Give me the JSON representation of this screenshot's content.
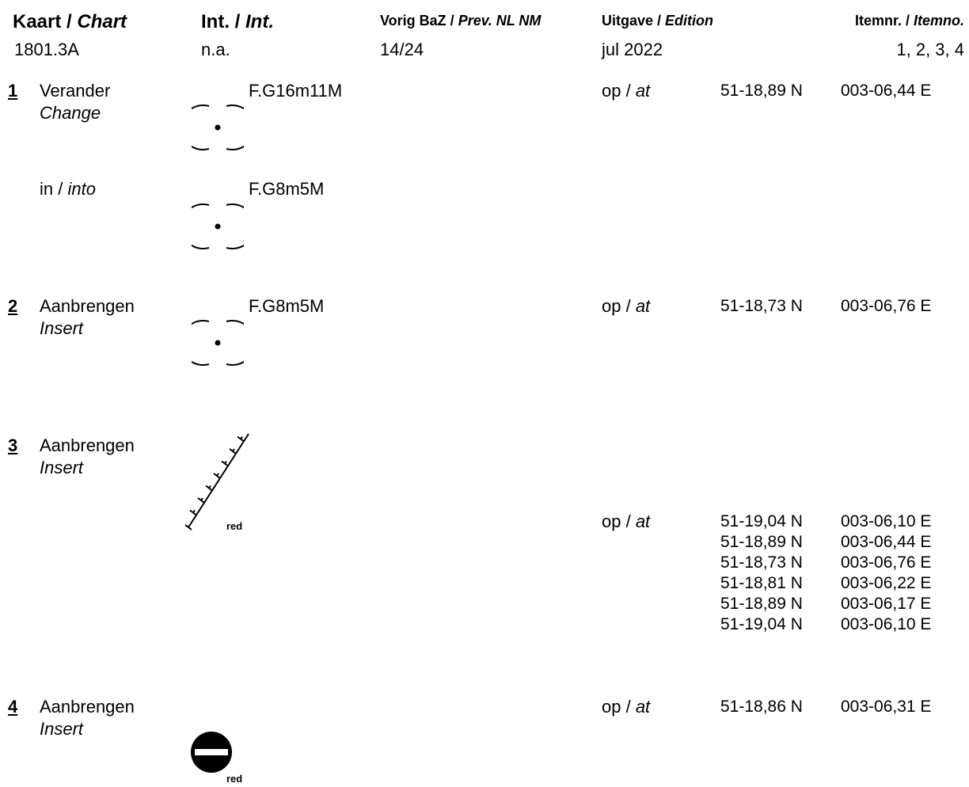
{
  "header": {
    "chart_label": "Kaart / ",
    "chart_label_it": "Chart",
    "int_label": "Int. / ",
    "int_label_it": "Int.",
    "prev_label": "Vorig BaZ / ",
    "prev_label_it": "Prev. NL NM",
    "edition_label": "Uitgave / ",
    "edition_label_it": "Edition",
    "itemno_label": "Itemnr. / ",
    "itemno_label_it": "Itemno.",
    "chart_value": "1801.3A",
    "int_value": "n.a.",
    "prev_value": "14/24",
    "edition_value": "jul 2022",
    "itemno_value": "1, 2, 3, 4"
  },
  "items": [
    {
      "number": "1",
      "action": "Verander",
      "action_en": "Change",
      "symbol_label": "F.G16m11M",
      "at": "op / ",
      "at_it": "at",
      "coords": [
        {
          "lat": "51-18,89 N",
          "lon": "003-06,44 E"
        }
      ],
      "into": "in / ",
      "into_it": "into",
      "into_symbol_label": "F.G8m5M"
    },
    {
      "number": "2",
      "action": "Aanbrengen",
      "action_en": "Insert",
      "symbol_label": "F.G8m5M",
      "at": "op / ",
      "at_it": "at",
      "coords": [
        {
          "lat": "51-18,73 N",
          "lon": "003-06,76 E"
        }
      ]
    },
    {
      "number": "3",
      "action": "Aanbrengen",
      "action_en": "Insert",
      "symbol_label": "red",
      "at": "op / ",
      "at_it": "at",
      "coords": [
        {
          "lat": "51-19,04 N",
          "lon": "003-06,10 E"
        },
        {
          "lat": "51-18,89 N",
          "lon": "003-06,44 E"
        },
        {
          "lat": "51-18,73 N",
          "lon": "003-06,76 E"
        },
        {
          "lat": "51-18,81 N",
          "lon": "003-06,22 E"
        },
        {
          "lat": "51-18,89 N",
          "lon": "003-06,17 E"
        },
        {
          "lat": "51-19,04 N",
          "lon": "003-06,10 E"
        }
      ]
    },
    {
      "number": "4",
      "action": "Aanbrengen",
      "action_en": "Insert",
      "symbol_label": "red",
      "at": "op / ",
      "at_it": "at",
      "coords": [
        {
          "lat": "51-18,86 N",
          "lon": "003-06,31 E"
        }
      ]
    }
  ]
}
